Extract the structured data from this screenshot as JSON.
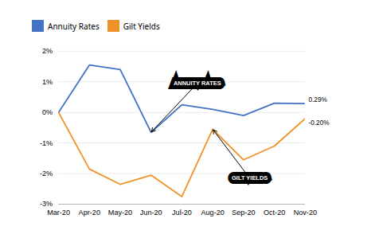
{
  "chart_data": {
    "type": "line",
    "categories": [
      "Mar-20",
      "Apr-20",
      "May-20",
      "Jun-20",
      "Jul-20",
      "Aug-20",
      "Sep-20",
      "Oct-20",
      "Nov-20"
    ],
    "series": [
      {
        "name": "Annuity Rates",
        "color": "#4472C4",
        "values": [
          0.0,
          1.55,
          1.4,
          -0.65,
          0.25,
          0.1,
          -0.1,
          0.3,
          0.29
        ],
        "value_labels": [
          null,
          null,
          null,
          null,
          null,
          null,
          null,
          null,
          "0.29%"
        ]
      },
      {
        "name": "Gilt Yields",
        "color": "#F0922A",
        "values": [
          0.0,
          -1.85,
          -2.35,
          -2.05,
          -2.75,
          -0.55,
          -1.55,
          -1.1,
          -0.2
        ],
        "value_labels": [
          null,
          null,
          null,
          null,
          null,
          null,
          null,
          null,
          "-0.20%"
        ]
      }
    ],
    "ylim": [
      -3.0,
      2.0
    ],
    "yticks": [
      {
        "value": -3.0,
        "label": "-3%"
      },
      {
        "value": -2.0,
        "label": "-2%"
      },
      {
        "value": -1.0,
        "label": "-1%"
      },
      {
        "value": 0.0,
        "label": "0%"
      },
      {
        "value": 1.0,
        "label": "1%"
      },
      {
        "value": 2.0,
        "label": "2%"
      }
    ],
    "grid": true,
    "legend": "top",
    "annotations": [
      {
        "text": "ANNUITY RATES",
        "series": "Annuity Rates",
        "category": "Jun-20"
      },
      {
        "text": "GILT YIELDS",
        "series": "Gilt Yields",
        "category": "Aug-20"
      }
    ]
  }
}
